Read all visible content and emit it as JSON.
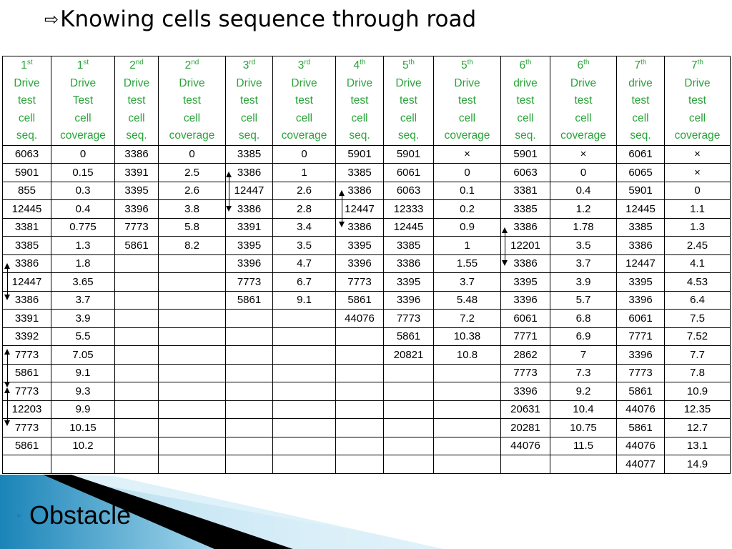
{
  "title": {
    "arrow": "⇨",
    "text": "Knowing cells sequence through road"
  },
  "table": {
    "headers": [
      {
        "ord": "1",
        "sup": "st",
        "lines": [
          "Drive",
          "test",
          "cell",
          "seq."
        ]
      },
      {
        "ord": "1",
        "sup": "st",
        "lines": [
          "Drive",
          "Test",
          "cell",
          "coverage"
        ]
      },
      {
        "ord": "2",
        "sup": "nd",
        "lines": [
          "Drive",
          "test",
          "cell",
          "seq."
        ]
      },
      {
        "ord": "2",
        "sup": "nd",
        "lines": [
          "Drive",
          "test",
          "cell",
          "coverage"
        ]
      },
      {
        "ord": "3",
        "sup": "rd",
        "lines": [
          "Drive",
          "test",
          "cell",
          "seq."
        ]
      },
      {
        "ord": "3",
        "sup": "rd",
        "lines": [
          "Drive",
          "test",
          "cell",
          "coverage"
        ]
      },
      {
        "ord": "4",
        "sup": "th",
        "lines": [
          "Drive",
          "test",
          "cell",
          "seq."
        ]
      },
      {
        "ord": "5",
        "sup": "th",
        "lines": [
          "Drive",
          "test",
          "cell",
          "seq."
        ]
      },
      {
        "ord": "5",
        "sup": "th",
        "lines": [
          "Drive",
          "test",
          "cell",
          "coverage"
        ]
      },
      {
        "ord": "6",
        "sup": "th",
        "lines": [
          "drive",
          "test",
          "cell",
          "seq."
        ]
      },
      {
        "ord": "6",
        "sup": "th",
        "lines": [
          "Drive",
          "test",
          "cell",
          "coverage"
        ]
      },
      {
        "ord": "7",
        "sup": "th",
        "lines": [
          "drive",
          "test",
          "cell",
          "seq."
        ]
      },
      {
        "ord": "7",
        "sup": "th",
        "lines": [
          "Drive",
          "test",
          "cell",
          "coverage"
        ]
      }
    ],
    "rows": [
      [
        "6063",
        "0",
        "3386",
        "0",
        "3385",
        "0",
        "5901",
        "5901",
        "×",
        "5901",
        "×",
        "6061",
        "×"
      ],
      [
        "5901",
        "0.15",
        "3391",
        "2.5",
        "3386",
        "1",
        "3385",
        "6061",
        "0",
        "6063",
        "0",
        "6065",
        "×"
      ],
      [
        "855",
        "0.3",
        "3395",
        "2.6",
        "12447",
        "2.6",
        "3386",
        "6063",
        "0.1",
        "3381",
        "0.4",
        "5901",
        "0"
      ],
      [
        "12445",
        "0.4",
        "3396",
        "3.8",
        "3386",
        "2.8",
        "12447",
        "12333",
        "0.2",
        "3385",
        "1.2",
        "12445",
        "1.1"
      ],
      [
        "3381",
        "0.775",
        "7773",
        "5.8",
        "3391",
        "3.4",
        "3386",
        "12445",
        "0.9",
        "3386",
        "1.78",
        "3385",
        "1.3"
      ],
      [
        "3385",
        "1.3",
        "5861",
        "8.2",
        "3395",
        "3.5",
        "3395",
        "3385",
        "1",
        "12201",
        "3.5",
        "3386",
        "2.45"
      ],
      [
        "3386",
        "1.8",
        "",
        "",
        "3396",
        "4.7",
        "3396",
        "3386",
        "1.55",
        "3386",
        "3.7",
        "12447",
        "4.1"
      ],
      [
        "12447",
        "3.65",
        "",
        "",
        "7773",
        "6.7",
        "7773",
        "3395",
        "3.7",
        "3395",
        "3.9",
        "3395",
        "4.53"
      ],
      [
        "3386",
        "3.7",
        "",
        "",
        "5861",
        "9.1",
        "5861",
        "3396",
        "5.48",
        "3396",
        "5.7",
        "3396",
        "6.4"
      ],
      [
        "3391",
        "3.9",
        "",
        "",
        "",
        "",
        "44076",
        "7773",
        "7.2",
        "6061",
        "6.8",
        "6061",
        "7.5"
      ],
      [
        "3392",
        "5.5",
        "",
        "",
        "",
        "",
        "",
        "5861",
        "10.38",
        "7771",
        "6.9",
        "7771",
        "7.52"
      ],
      [
        "7773",
        "7.05",
        "",
        "",
        "",
        "",
        "",
        "20821",
        "10.8",
        "2862",
        "7",
        "3396",
        "7.7"
      ],
      [
        "5861",
        "9.1",
        "",
        "",
        "",
        "",
        "",
        "",
        "",
        "7773",
        "7.3",
        "7773",
        "7.8"
      ],
      [
        "7773",
        "9.3",
        "",
        "",
        "",
        "",
        "",
        "",
        "",
        "3396",
        "9.2",
        "5861",
        "10.9"
      ],
      [
        "12203",
        "9.9",
        "",
        "",
        "",
        "",
        "",
        "",
        "",
        "20631",
        "10.4",
        "44076",
        "12.35"
      ],
      [
        "7773",
        "10.15",
        "",
        "",
        "",
        "",
        "",
        "",
        "",
        "20281",
        "10.75",
        "5861",
        "12.7"
      ],
      [
        "5861",
        "10.2",
        "",
        "",
        "",
        "",
        "",
        "",
        "",
        "44076",
        "11.5",
        "44076",
        "13.1"
      ],
      [
        "",
        "",
        "",
        "",
        "",
        "",
        "",
        "",
        "",
        "",
        "",
        "44077",
        "14.9"
      ]
    ]
  },
  "footer": {
    "bullet": "▸",
    "text": "Obstacle"
  },
  "colors": {
    "header_text": "#2aa33a",
    "footer_band": "#1a84b8"
  }
}
